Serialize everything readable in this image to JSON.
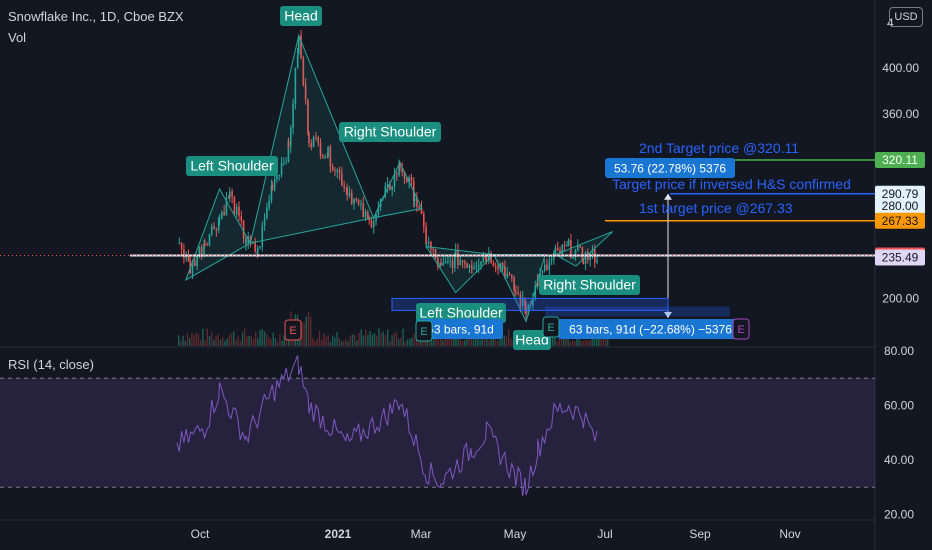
{
  "header": {
    "title": "Snowflake Inc., 1D, Cboe BZX",
    "volume_label": "Vol"
  },
  "currency_button": "USD",
  "rsi_header": "RSI (14, close)",
  "colors": {
    "up": "#26a69a",
    "down": "#ef5350",
    "rsi": "#7e57c2",
    "green_line": "#4caf50",
    "orange_line": "#ff9800",
    "blue_text": "#2962ff",
    "white_line": "#e0e3eb"
  },
  "chart_data": [
    {
      "type": "candlestick",
      "title": "Snowflake Inc., 1D, Cboe BZX",
      "x_ticks": [
        "Oct",
        "2021",
        "Mar",
        "May",
        "Jul",
        "Sep",
        "Nov"
      ],
      "y_ticks": [
        200.0,
        240.0,
        280.0,
        320.0,
        360.0,
        400.0
      ],
      "y_top_label": "4",
      "price_scale_badges": [
        {
          "label": "320.11",
          "value": 320.11,
          "color": "#4caf50"
        },
        {
          "label": "290.79",
          "value": 290.79,
          "color": "#e3f2fd"
        },
        {
          "label": "280.00",
          "value": 280.0,
          "color": "#e3f2fd"
        },
        {
          "label": "267.33",
          "value": 267.33,
          "color": "#ff9800"
        },
        {
          "label": "237.24",
          "value": 237.24,
          "color": "#ef5350"
        },
        {
          "label": "235.49",
          "value": 235.49,
          "color": "#e1d5f5"
        }
      ],
      "approx_close_path": [
        [
          "2020-09-16",
          253
        ],
        [
          "2020-09-25",
          226
        ],
        [
          "2020-10-05",
          250
        ],
        [
          "2020-10-15",
          270
        ],
        [
          "2020-10-22",
          290
        ],
        [
          "2020-11-02",
          250
        ],
        [
          "2020-11-10",
          240
        ],
        [
          "2020-11-20",
          300
        ],
        [
          "2020-12-01",
          330
        ],
        [
          "2020-12-08",
          425
        ],
        [
          "2020-12-15",
          340
        ],
        [
          "2020-12-28",
          325
        ],
        [
          "2021-01-10",
          295
        ],
        [
          "2021-01-25",
          265
        ],
        [
          "2021-02-05",
          290
        ],
        [
          "2021-02-15",
          315
        ],
        [
          "2021-02-25",
          290
        ],
        [
          "2021-03-05",
          250
        ],
        [
          "2021-03-15",
          225
        ],
        [
          "2021-03-25",
          235
        ],
        [
          "2021-04-05",
          230
        ],
        [
          "2021-04-15",
          238
        ],
        [
          "2021-04-26",
          228
        ],
        [
          "2021-05-05",
          205
        ],
        [
          "2021-05-12",
          190
        ],
        [
          "2021-05-20",
          215
        ],
        [
          "2021-06-01",
          238
        ],
        [
          "2021-06-10",
          244
        ],
        [
          "2021-06-20",
          236
        ],
        [
          "2021-06-30",
          237.24
        ]
      ],
      "annotations": [
        {
          "text": "Head"
        },
        {
          "text": "Left Shoulder"
        },
        {
          "text": "Right Shoulder"
        },
        {
          "text": "Left Shoulder"
        },
        {
          "text": "Right Shoulder"
        },
        {
          "text": "Head"
        },
        {
          "text": "2nd Target price @320.11"
        },
        {
          "text": "Target price if inversed H&S confirmed"
        },
        {
          "text": "1st target price @267.33"
        },
        {
          "text": "53.76 (22.78%) 5376"
        },
        {
          "text": "63 bars, 91d    (−22.68%) −5376"
        },
        {
          "text": "63 bars, 91d"
        }
      ],
      "event_markers": [
        "E",
        "E",
        "E",
        "E"
      ]
    },
    {
      "type": "line",
      "title": "RSI (14, close)",
      "y_ticks": [
        20.0,
        40.0,
        60.0,
        80.0
      ],
      "bands": [
        30,
        70
      ],
      "approx_values": [
        [
          "2020-09-16",
          45
        ],
        [
          "2020-10-05",
          52
        ],
        [
          "2020-10-15",
          66
        ],
        [
          "2020-11-02",
          48
        ],
        [
          "2020-11-20",
          65
        ],
        [
          "2020-12-08",
          75
        ],
        [
          "2020-12-15",
          60
        ],
        [
          "2021-01-10",
          46
        ],
        [
          "2021-02-05",
          56
        ],
        [
          "2021-02-15",
          62
        ],
        [
          "2021-03-05",
          36
        ],
        [
          "2021-03-15",
          32
        ],
        [
          "2021-04-05",
          44
        ],
        [
          "2021-04-15",
          50
        ],
        [
          "2021-05-05",
          34
        ],
        [
          "2021-05-12",
          30
        ],
        [
          "2021-05-20",
          44
        ],
        [
          "2021-06-01",
          58
        ],
        [
          "2021-06-10",
          60
        ],
        [
          "2021-06-20",
          56
        ],
        [
          "2021-06-30",
          46
        ]
      ]
    }
  ]
}
